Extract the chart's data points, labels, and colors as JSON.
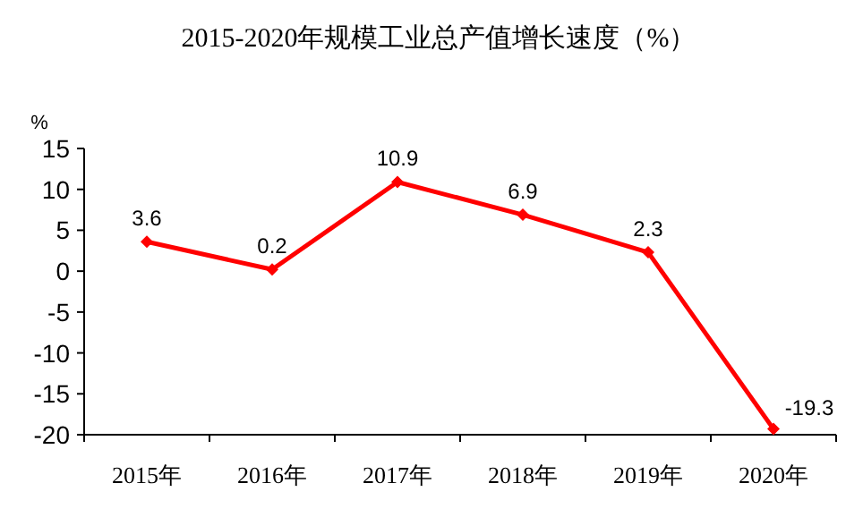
{
  "chart_data": {
    "type": "line",
    "title": "2015-2020年规模工业总产值增长速度（%）",
    "ylabel": "%",
    "categories": [
      "2015年",
      "2016年",
      "2017年",
      "2018年",
      "2019年",
      "2020年"
    ],
    "series": [
      {
        "color": "#ff0000",
        "values": [
          3.6,
          0.2,
          10.9,
          6.9,
          2.3,
          -19.3
        ]
      }
    ],
    "ylim": [
      -20,
      15
    ],
    "yticks": [
      -20,
      -15,
      -10,
      -5,
      0,
      5,
      10,
      15
    ],
    "data_labels": true,
    "marker": "diamond",
    "line_style": "solid"
  }
}
